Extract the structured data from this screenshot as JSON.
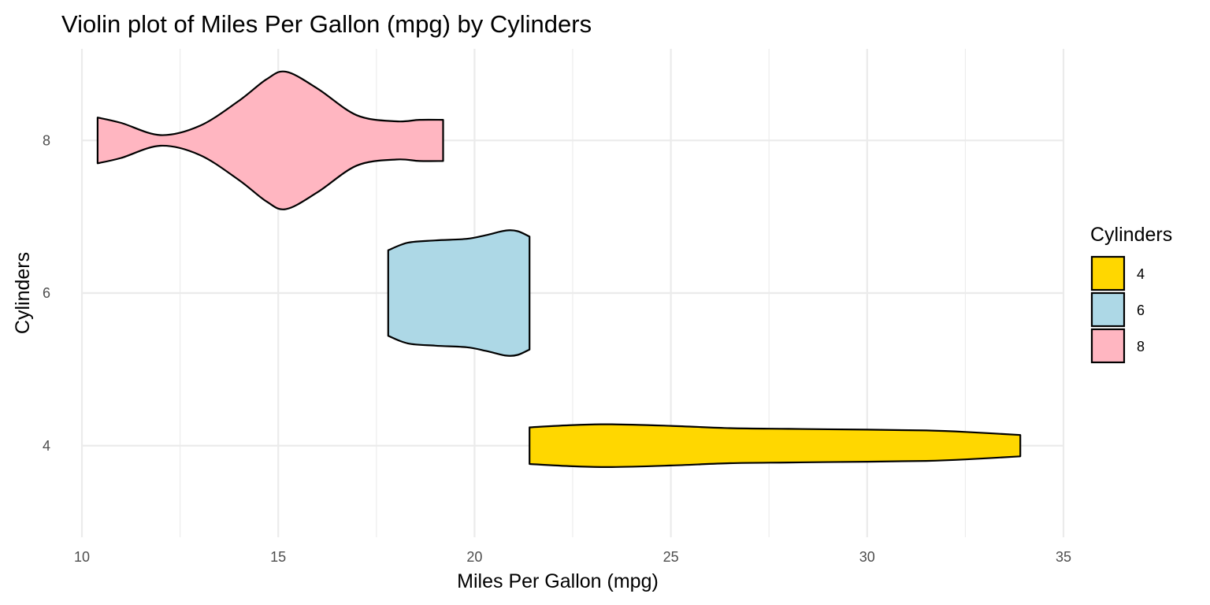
{
  "chart_data": {
    "type": "violin",
    "title": "Violin plot of Miles Per Gallon (mpg) by Cylinders",
    "xlabel": "Miles Per Gallon (mpg)",
    "ylabel": "Cylinders",
    "xlim": [
      10,
      35
    ],
    "ylim": [
      2.8,
      9.2
    ],
    "x_ticks": [
      10,
      15,
      20,
      25,
      30,
      35
    ],
    "y_ticks": [
      4,
      6,
      8
    ],
    "grid": true,
    "legend": {
      "title": "Cylinders",
      "position": "right",
      "entries": [
        {
          "label": "4",
          "color": "#FFD700"
        },
        {
          "label": "6",
          "color": "#ADD8E6"
        },
        {
          "label": "8",
          "color": "#FFB6C1"
        }
      ]
    },
    "series": [
      {
        "name": "4",
        "center": 4,
        "color": "#FFD700",
        "range": [
          21.4,
          33.9
        ],
        "density_profile": [
          [
            21.4,
            0.24
          ],
          [
            22.5,
            0.27
          ],
          [
            23.5,
            0.28
          ],
          [
            25.0,
            0.26
          ],
          [
            26.5,
            0.23
          ],
          [
            28.0,
            0.22
          ],
          [
            30.0,
            0.21
          ],
          [
            31.5,
            0.2
          ],
          [
            32.5,
            0.18
          ],
          [
            33.9,
            0.14
          ]
        ]
      },
      {
        "name": "6",
        "center": 6,
        "color": "#ADD8E6",
        "range": [
          17.8,
          21.4
        ],
        "density_profile": [
          [
            17.8,
            0.56
          ],
          [
            18.3,
            0.66
          ],
          [
            19.0,
            0.69
          ],
          [
            19.8,
            0.71
          ],
          [
            20.3,
            0.76
          ],
          [
            20.8,
            0.82
          ],
          [
            21.1,
            0.81
          ],
          [
            21.4,
            0.74
          ]
        ]
      },
      {
        "name": "8",
        "center": 8,
        "color": "#FFB6C1",
        "range": [
          10.4,
          19.2
        ],
        "density_profile": [
          [
            10.4,
            0.3
          ],
          [
            11.0,
            0.23
          ],
          [
            12.0,
            0.07
          ],
          [
            13.0,
            0.19
          ],
          [
            14.0,
            0.52
          ],
          [
            14.7,
            0.8
          ],
          [
            15.2,
            0.9
          ],
          [
            16.0,
            0.68
          ],
          [
            17.0,
            0.33
          ],
          [
            18.0,
            0.25
          ],
          [
            18.6,
            0.27
          ],
          [
            19.2,
            0.27
          ]
        ]
      }
    ]
  }
}
